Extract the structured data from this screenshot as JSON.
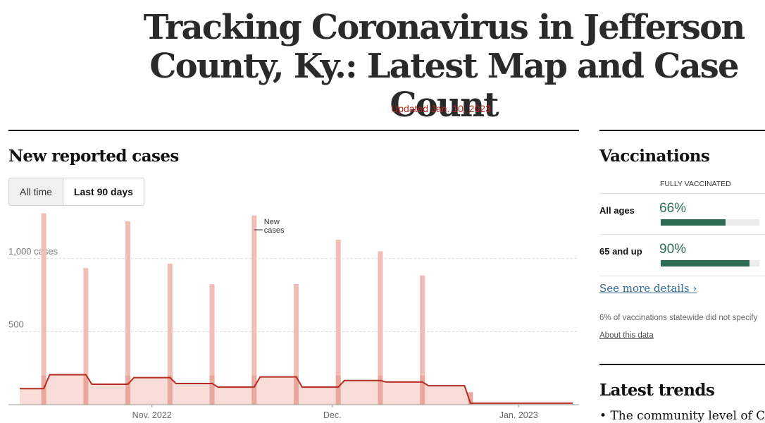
{
  "header": {
    "title": "Tracking Coronavirus in Jefferson County, Ky.: Latest Map and Case Count",
    "updated": "Updated Jan. 10, 2023"
  },
  "cases_section": {
    "title": "New reported cases",
    "toggle": {
      "all_time": "All time",
      "last_90": "Last 90 days",
      "selected": "last_90"
    }
  },
  "chart_data": {
    "type": "bar",
    "title": "New reported cases",
    "xlabel": "",
    "ylabel": "",
    "ylim": [
      0,
      1250
    ],
    "y_ticks": [
      {
        "value": 500,
        "label": "500"
      },
      {
        "value": 1000,
        "label": "1,000 cases"
      }
    ],
    "x_ticks": [
      {
        "date": "2022-11-01",
        "label": "Nov. 2022"
      },
      {
        "date": "2022-12-01",
        "label": "Dec."
      },
      {
        "date": "2023-01-01",
        "label": "Jan. 2023"
      }
    ],
    "series": [
      {
        "name": "New cases",
        "kind": "daily bars",
        "color": "#f2bdb5",
        "points": [
          {
            "date": "2022-10-14",
            "value": 1310
          },
          {
            "date": "2022-10-21",
            "value": 935
          },
          {
            "date": "2022-10-28",
            "value": 1255
          },
          {
            "date": "2022-11-04",
            "value": 965
          },
          {
            "date": "2022-11-11",
            "value": 825
          },
          {
            "date": "2022-11-18",
            "value": 1295
          },
          {
            "date": "2022-11-25",
            "value": 825
          },
          {
            "date": "2022-12-02",
            "value": 1130
          },
          {
            "date": "2022-12-09",
            "value": 1050
          },
          {
            "date": "2022-12-16",
            "value": 885
          },
          {
            "date": "2022-12-24",
            "value": 85
          }
        ]
      },
      {
        "name": "",
        "kind": "7-day average",
        "color": "#b52b20",
        "points": [
          {
            "date": "2022-10-10",
            "value": 110
          },
          {
            "date": "2022-10-14",
            "value": 110
          },
          {
            "date": "2022-10-15",
            "value": 205
          },
          {
            "date": "2022-10-21",
            "value": 205
          },
          {
            "date": "2022-10-22",
            "value": 140
          },
          {
            "date": "2022-10-28",
            "value": 140
          },
          {
            "date": "2022-10-29",
            "value": 185
          },
          {
            "date": "2022-11-04",
            "value": 185
          },
          {
            "date": "2022-11-05",
            "value": 145
          },
          {
            "date": "2022-11-11",
            "value": 145
          },
          {
            "date": "2022-11-12",
            "value": 120
          },
          {
            "date": "2022-11-18",
            "value": 120
          },
          {
            "date": "2022-11-19",
            "value": 190
          },
          {
            "date": "2022-11-25",
            "value": 190
          },
          {
            "date": "2022-11-26",
            "value": 120
          },
          {
            "date": "2022-12-02",
            "value": 120
          },
          {
            "date": "2022-12-03",
            "value": 165
          },
          {
            "date": "2022-12-09",
            "value": 165
          },
          {
            "date": "2022-12-10",
            "value": 155
          },
          {
            "date": "2022-12-16",
            "value": 155
          },
          {
            "date": "2022-12-17",
            "value": 130
          },
          {
            "date": "2022-12-23",
            "value": 130
          },
          {
            "date": "2022-12-24",
            "value": 10
          },
          {
            "date": "2023-01-10",
            "value": 10
          }
        ]
      }
    ],
    "annotation": {
      "line1": "New",
      "line2": "cases",
      "date": "2022-11-18"
    },
    "grid": true
  },
  "vaccinations": {
    "title": "Vaccinations",
    "column_header": "FULLY VACCINATED",
    "rows": [
      {
        "label": "All ages",
        "pct_text": "66%",
        "value": 0.66
      },
      {
        "label": "65 and up",
        "pct_text": "90%",
        "value": 0.9
      }
    ],
    "details_link": "See more details ›",
    "note": "6% of vaccinations statewide did not specify",
    "about_link": "About this data"
  },
  "trends": {
    "title": "Latest trends",
    "first_item": "• The community level of Covid"
  },
  "colors": {
    "headline": "#2a2a2a",
    "updated": "#b52b20",
    "bars": "#f2bdb5",
    "bars_dark": "#e29a8f",
    "avg_line": "#b52b20",
    "avg_area": "#f7dcd8",
    "vax_fill": "#2e6b55",
    "link": "#326891"
  }
}
